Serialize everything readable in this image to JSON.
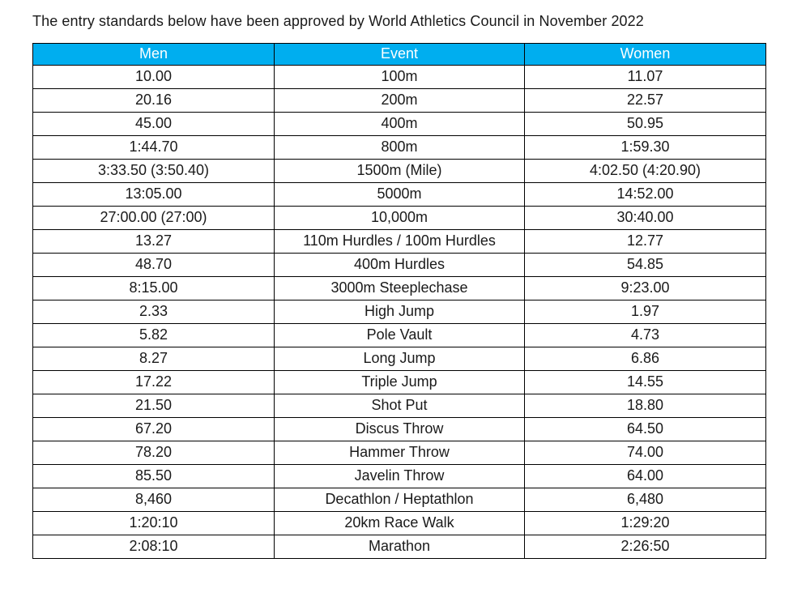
{
  "intro": {
    "text": "The entry standards below have been approved by World Athletics Council in November 2022"
  },
  "colors": {
    "header_bg": "#00AEEF",
    "header_text": "#FFFFFF",
    "border": "#000000",
    "body_text": "#1A1A1A"
  },
  "table": {
    "headers": [
      "Men",
      "Event",
      "Women"
    ],
    "rows": [
      [
        "10.00",
        "100m",
        "11.07"
      ],
      [
        "20.16",
        "200m",
        "22.57"
      ],
      [
        "45.00",
        "400m",
        "50.95"
      ],
      [
        "1:44.70",
        "800m",
        "1:59.30"
      ],
      [
        "3:33.50 (3:50.40)",
        "1500m (Mile)",
        "4:02.50 (4:20.90)"
      ],
      [
        "13:05.00",
        "5000m",
        "14:52.00"
      ],
      [
        "27:00.00 (27:00)",
        "10,000m",
        "30:40.00"
      ],
      [
        "13.27",
        "110m Hurdles / 100m Hurdles",
        "12.77"
      ],
      [
        "48.70",
        "400m Hurdles",
        "54.85"
      ],
      [
        "8:15.00",
        "3000m Steeplechase",
        "9:23.00"
      ],
      [
        "2.33",
        "High Jump",
        "1.97"
      ],
      [
        "5.82",
        "Pole Vault",
        "4.73"
      ],
      [
        "8.27",
        "Long Jump",
        "6.86"
      ],
      [
        "17.22",
        "Triple Jump",
        "14.55"
      ],
      [
        "21.50",
        "Shot Put",
        "18.80"
      ],
      [
        "67.20",
        "Discus Throw",
        "64.50"
      ],
      [
        "78.20",
        "Hammer Throw",
        "74.00"
      ],
      [
        "85.50",
        "Javelin Throw",
        "64.00"
      ],
      [
        "8,460",
        "Decathlon / Heptathlon",
        "6,480"
      ],
      [
        "1:20:10",
        "20km Race Walk",
        "1:29:20"
      ],
      [
        "2:08:10",
        "Marathon",
        "2:26:50"
      ]
    ]
  }
}
